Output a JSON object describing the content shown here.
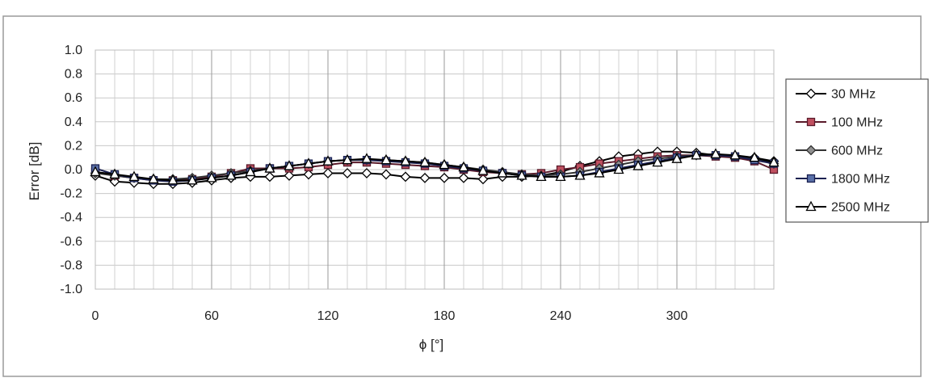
{
  "chart_data": {
    "type": "line",
    "title": "",
    "xlabel": "ϕ [°]",
    "ylabel": "Error [dB]",
    "xlim": [
      0,
      350
    ],
    "ylim": [
      -1.0,
      1.0
    ],
    "xticks": [
      0,
      60,
      120,
      180,
      240,
      300
    ],
    "xtick_labels": [
      "0",
      "60",
      "120",
      "180",
      "240",
      "300"
    ],
    "yticks": [
      1.0,
      0.8,
      0.6,
      0.4,
      0.2,
      0.0,
      -0.2,
      -0.4,
      -0.6,
      -0.8,
      -1.0
    ],
    "ytick_labels": [
      "1.0",
      "0.8",
      "0.6",
      "0.4",
      "0.2",
      "0.0",
      "-0.2",
      "-0.4",
      "-0.6",
      "-0.8",
      "-1.0"
    ],
    "grid": true,
    "legend_position": "right",
    "x": [
      0,
      10,
      20,
      30,
      40,
      50,
      60,
      70,
      80,
      90,
      100,
      110,
      120,
      130,
      140,
      150,
      160,
      170,
      180,
      190,
      200,
      210,
      220,
      230,
      240,
      250,
      260,
      270,
      280,
      290,
      300,
      310,
      320,
      330,
      340,
      350
    ],
    "series": [
      {
        "name": "30 MHz",
        "marker": "diamond-open",
        "color": "#000000",
        "fill": "#ffffff",
        "values": [
          -0.05,
          -0.1,
          -0.11,
          -0.12,
          -0.12,
          -0.11,
          -0.09,
          -0.07,
          -0.06,
          -0.06,
          -0.05,
          -0.04,
          -0.03,
          -0.03,
          -0.03,
          -0.04,
          -0.06,
          -0.07,
          -0.07,
          -0.07,
          -0.08,
          -0.06,
          -0.06,
          -0.05,
          -0.02,
          0.03,
          0.07,
          0.11,
          0.13,
          0.15,
          0.15,
          0.14,
          0.12,
          0.11,
          0.1,
          0.07
        ]
      },
      {
        "name": "100 MHz",
        "marker": "square",
        "color": "#5a1a2a",
        "fill": "#c05060",
        "values": [
          -0.02,
          -0.05,
          -0.07,
          -0.09,
          -0.09,
          -0.08,
          -0.06,
          -0.03,
          0.01,
          0.01,
          0.01,
          0.02,
          0.04,
          0.06,
          0.06,
          0.05,
          0.04,
          0.03,
          0.02,
          0.0,
          -0.02,
          -0.03,
          -0.04,
          -0.03,
          0.0,
          0.02,
          0.05,
          0.07,
          0.09,
          0.11,
          0.12,
          0.12,
          0.11,
          0.1,
          0.07,
          0.0
        ]
      },
      {
        "name": "600 MHz",
        "marker": "diamond",
        "color": "#333333",
        "fill": "#909090",
        "values": [
          -0.03,
          -0.05,
          -0.07,
          -0.08,
          -0.08,
          -0.07,
          -0.05,
          -0.03,
          -0.01,
          0.01,
          0.03,
          0.05,
          0.07,
          0.08,
          0.08,
          0.08,
          0.07,
          0.06,
          0.04,
          0.02,
          0.0,
          -0.02,
          -0.04,
          -0.05,
          -0.04,
          -0.02,
          0.01,
          0.04,
          0.07,
          0.09,
          0.11,
          0.12,
          0.12,
          0.11,
          0.09,
          0.05
        ]
      },
      {
        "name": "1800 MHz",
        "marker": "square",
        "color": "#1a2050",
        "fill": "#5a70a8",
        "values": [
          0.01,
          -0.04,
          -0.07,
          -0.09,
          -0.1,
          -0.09,
          -0.07,
          -0.05,
          -0.02,
          0.01,
          0.03,
          0.05,
          0.07,
          0.08,
          0.08,
          0.07,
          0.06,
          0.05,
          0.03,
          0.01,
          -0.01,
          -0.03,
          -0.05,
          -0.06,
          -0.06,
          -0.05,
          -0.02,
          0.01,
          0.04,
          0.07,
          0.1,
          0.12,
          0.12,
          0.11,
          0.08,
          0.05
        ]
      },
      {
        "name": "2500 MHz",
        "marker": "triangle-open",
        "color": "#000000",
        "fill": "#ffffff",
        "values": [
          -0.02,
          -0.04,
          -0.06,
          -0.08,
          -0.09,
          -0.09,
          -0.07,
          -0.05,
          -0.02,
          0.01,
          0.03,
          0.05,
          0.07,
          0.08,
          0.09,
          0.08,
          0.07,
          0.06,
          0.04,
          0.02,
          -0.01,
          -0.03,
          -0.05,
          -0.06,
          -0.06,
          -0.05,
          -0.03,
          0.0,
          0.03,
          0.06,
          0.09,
          0.12,
          0.13,
          0.12,
          0.1,
          0.06
        ]
      }
    ]
  }
}
